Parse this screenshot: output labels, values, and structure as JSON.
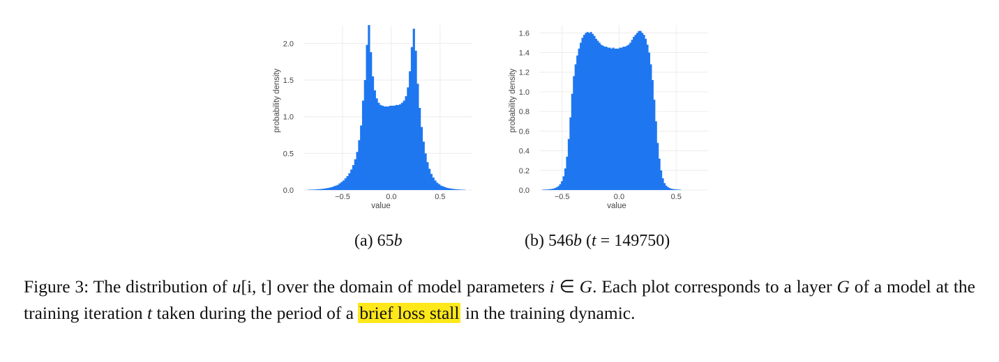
{
  "chart_data": [
    {
      "type": "bar",
      "subcaption_label": "(a)",
      "subcaption_model": "65",
      "subcaption_unit": "b",
      "xlabel": "value",
      "ylabel": "probability density",
      "xlim": [
        -0.9,
        0.83
      ],
      "ylim": [
        0,
        2.25
      ],
      "xticks": [
        {
          "v": -0.5,
          "label": "−0.5"
        },
        {
          "v": 0.0,
          "label": "0.0"
        },
        {
          "v": 0.5,
          "label": "0.5"
        }
      ],
      "yticks": [
        {
          "v": 0.0,
          "label": "0.0"
        },
        {
          "v": 0.5,
          "label": "0.5"
        },
        {
          "v": 1.0,
          "label": "1.0"
        },
        {
          "v": 1.5,
          "label": "1.5"
        },
        {
          "v": 2.0,
          "label": "2.0"
        }
      ],
      "grid": true,
      "color": "#1f77f0",
      "bin_width": 0.02,
      "bins": [
        [
          -0.85,
          0.004
        ],
        [
          -0.83,
          0.005
        ],
        [
          -0.81,
          0.006
        ],
        [
          -0.79,
          0.007
        ],
        [
          -0.77,
          0.009
        ],
        [
          -0.75,
          0.011
        ],
        [
          -0.73,
          0.013
        ],
        [
          -0.71,
          0.016
        ],
        [
          -0.69,
          0.019
        ],
        [
          -0.67,
          0.023
        ],
        [
          -0.65,
          0.028
        ],
        [
          -0.63,
          0.034
        ],
        [
          -0.61,
          0.04
        ],
        [
          -0.59,
          0.05
        ],
        [
          -0.57,
          0.06
        ],
        [
          -0.55,
          0.07
        ],
        [
          -0.53,
          0.09
        ],
        [
          -0.51,
          0.11
        ],
        [
          -0.49,
          0.13
        ],
        [
          -0.47,
          0.16
        ],
        [
          -0.45,
          0.19
        ],
        [
          -0.43,
          0.23
        ],
        [
          -0.41,
          0.28
        ],
        [
          -0.39,
          0.34
        ],
        [
          -0.37,
          0.42
        ],
        [
          -0.35,
          0.52
        ],
        [
          -0.33,
          0.68
        ],
        [
          -0.31,
          0.88
        ],
        [
          -0.29,
          1.22
        ],
        [
          -0.27,
          1.5
        ],
        [
          -0.25,
          1.98
        ],
        [
          -0.23,
          2.25
        ],
        [
          -0.21,
          1.88
        ],
        [
          -0.19,
          1.55
        ],
        [
          -0.17,
          1.36
        ],
        [
          -0.15,
          1.25
        ],
        [
          -0.13,
          1.19
        ],
        [
          -0.11,
          1.16
        ],
        [
          -0.09,
          1.15
        ],
        [
          -0.07,
          1.14
        ],
        [
          -0.05,
          1.14
        ],
        [
          -0.03,
          1.14
        ],
        [
          -0.01,
          1.15
        ],
        [
          0.01,
          1.15
        ],
        [
          0.03,
          1.15
        ],
        [
          0.05,
          1.16
        ],
        [
          0.07,
          1.16
        ],
        [
          0.09,
          1.17
        ],
        [
          0.11,
          1.19
        ],
        [
          0.13,
          1.22
        ],
        [
          0.15,
          1.28
        ],
        [
          0.17,
          1.4
        ],
        [
          0.19,
          1.62
        ],
        [
          0.21,
          1.95
        ],
        [
          0.23,
          2.2
        ],
        [
          0.25,
          1.9
        ],
        [
          0.27,
          1.45
        ],
        [
          0.29,
          1.12
        ],
        [
          0.31,
          0.86
        ],
        [
          0.33,
          0.66
        ],
        [
          0.35,
          0.5
        ],
        [
          0.37,
          0.38
        ],
        [
          0.39,
          0.29
        ],
        [
          0.41,
          0.22
        ],
        [
          0.43,
          0.17
        ],
        [
          0.45,
          0.13
        ],
        [
          0.47,
          0.1
        ],
        [
          0.49,
          0.08
        ],
        [
          0.51,
          0.06
        ],
        [
          0.53,
          0.05
        ],
        [
          0.55,
          0.04
        ],
        [
          0.57,
          0.03
        ],
        [
          0.59,
          0.025
        ],
        [
          0.61,
          0.02
        ],
        [
          0.63,
          0.016
        ],
        [
          0.65,
          0.013
        ],
        [
          0.67,
          0.01
        ],
        [
          0.69,
          0.008
        ],
        [
          0.71,
          0.006
        ],
        [
          0.73,
          0.005
        ],
        [
          0.75,
          0.004
        ]
      ]
    },
    {
      "type": "bar",
      "subcaption_label": "(b)",
      "subcaption_model": "546",
      "subcaption_unit": "b",
      "subcaption_extra_open": "(",
      "subcaption_t_symbol": "t",
      "subcaption_t_eq": " = 149750)",
      "xlabel": "value",
      "ylabel": "probability density",
      "xlim": [
        -0.7,
        0.78
      ],
      "ylim": [
        0,
        1.68
      ],
      "xticks": [
        {
          "v": -0.5,
          "label": "−0.5"
        },
        {
          "v": 0.0,
          "label": "0.0"
        },
        {
          "v": 0.5,
          "label": "0.5"
        }
      ],
      "yticks": [
        {
          "v": 0.0,
          "label": "0.0"
        },
        {
          "v": 0.2,
          "label": "0.2"
        },
        {
          "v": 0.4,
          "label": "0.4"
        },
        {
          "v": 0.6,
          "label": "0.6"
        },
        {
          "v": 0.8,
          "label": "0.8"
        },
        {
          "v": 1.0,
          "label": "1.0"
        },
        {
          "v": 1.2,
          "label": "1.2"
        },
        {
          "v": 1.4,
          "label": "1.4"
        },
        {
          "v": 1.6,
          "label": "1.6"
        }
      ],
      "grid": true,
      "color": "#1f77f0",
      "bin_width": 0.015,
      "bins": [
        [
          -0.6675,
          0.004
        ],
        [
          -0.6525,
          0.005
        ],
        [
          -0.6375,
          0.006
        ],
        [
          -0.6225,
          0.007
        ],
        [
          -0.6075,
          0.009
        ],
        [
          -0.5925,
          0.011
        ],
        [
          -0.5775,
          0.014
        ],
        [
          -0.5625,
          0.02
        ],
        [
          -0.5475,
          0.028
        ],
        [
          -0.5325,
          0.04
        ],
        [
          -0.5175,
          0.06
        ],
        [
          -0.5025,
          0.09
        ],
        [
          -0.4875,
          0.14
        ],
        [
          -0.4725,
          0.22
        ],
        [
          -0.4575,
          0.34
        ],
        [
          -0.4425,
          0.52
        ],
        [
          -0.4275,
          0.74
        ],
        [
          -0.4125,
          0.98
        ],
        [
          -0.3975,
          1.16
        ],
        [
          -0.3825,
          1.28
        ],
        [
          -0.3675,
          1.37
        ],
        [
          -0.3525,
          1.44
        ],
        [
          -0.3375,
          1.5
        ],
        [
          -0.3225,
          1.55
        ],
        [
          -0.3075,
          1.58
        ],
        [
          -0.2925,
          1.6
        ],
        [
          -0.2775,
          1.61
        ],
        [
          -0.2625,
          1.6
        ],
        [
          -0.2475,
          1.61
        ],
        [
          -0.2325,
          1.59
        ],
        [
          -0.2175,
          1.57
        ],
        [
          -0.2025,
          1.54
        ],
        [
          -0.1875,
          1.52
        ],
        [
          -0.1725,
          1.5
        ],
        [
          -0.1575,
          1.48
        ],
        [
          -0.1425,
          1.47
        ],
        [
          -0.1275,
          1.46
        ],
        [
          -0.1125,
          1.46
        ],
        [
          -0.0975,
          1.45
        ],
        [
          -0.0825,
          1.45
        ],
        [
          -0.0675,
          1.44
        ],
        [
          -0.0525,
          1.45
        ],
        [
          -0.0375,
          1.44
        ],
        [
          -0.0225,
          1.44
        ],
        [
          -0.0075,
          1.44
        ],
        [
          0.0075,
          1.45
        ],
        [
          0.0225,
          1.45
        ],
        [
          0.0375,
          1.46
        ],
        [
          0.0525,
          1.46
        ],
        [
          0.0675,
          1.47
        ],
        [
          0.0825,
          1.48
        ],
        [
          0.0975,
          1.5
        ],
        [
          0.1125,
          1.53
        ],
        [
          0.1275,
          1.56
        ],
        [
          0.1425,
          1.58
        ],
        [
          0.1575,
          1.6
        ],
        [
          0.1725,
          1.62
        ],
        [
          0.1875,
          1.62
        ],
        [
          0.2025,
          1.6
        ],
        [
          0.2175,
          1.58
        ],
        [
          0.2325,
          1.54
        ],
        [
          0.2475,
          1.48
        ],
        [
          0.2625,
          1.4
        ],
        [
          0.2775,
          1.28
        ],
        [
          0.2925,
          1.12
        ],
        [
          0.3075,
          0.92
        ],
        [
          0.3225,
          0.7
        ],
        [
          0.3375,
          0.48
        ],
        [
          0.3525,
          0.32
        ],
        [
          0.3675,
          0.2
        ],
        [
          0.3825,
          0.12
        ],
        [
          0.3975,
          0.07
        ],
        [
          0.4125,
          0.045
        ],
        [
          0.4275,
          0.03
        ],
        [
          0.4425,
          0.02
        ],
        [
          0.4575,
          0.014
        ],
        [
          0.4725,
          0.01
        ],
        [
          0.4875,
          0.008
        ],
        [
          0.5025,
          0.006
        ],
        [
          0.5175,
          0.005
        ],
        [
          0.5325,
          0.004
        ]
      ]
    }
  ],
  "caption": {
    "lead": "Figure 3: The distribution of ",
    "u_symbol": "u",
    "u_args": "[i, t]",
    "mid1": " over the domain of model parameters ",
    "i_symbol": "i",
    "in_symbol": " ∈ ",
    "G_symbol": "G",
    "mid2": ". Each plot corresponds to a layer ",
    "G2_symbol": "G",
    "mid3": " of a model at the training iteration ",
    "t_symbol": "t",
    "mid4": " taken during the period of a ",
    "highlight": "brief loss stall",
    "tail": " in the training dynamic."
  }
}
